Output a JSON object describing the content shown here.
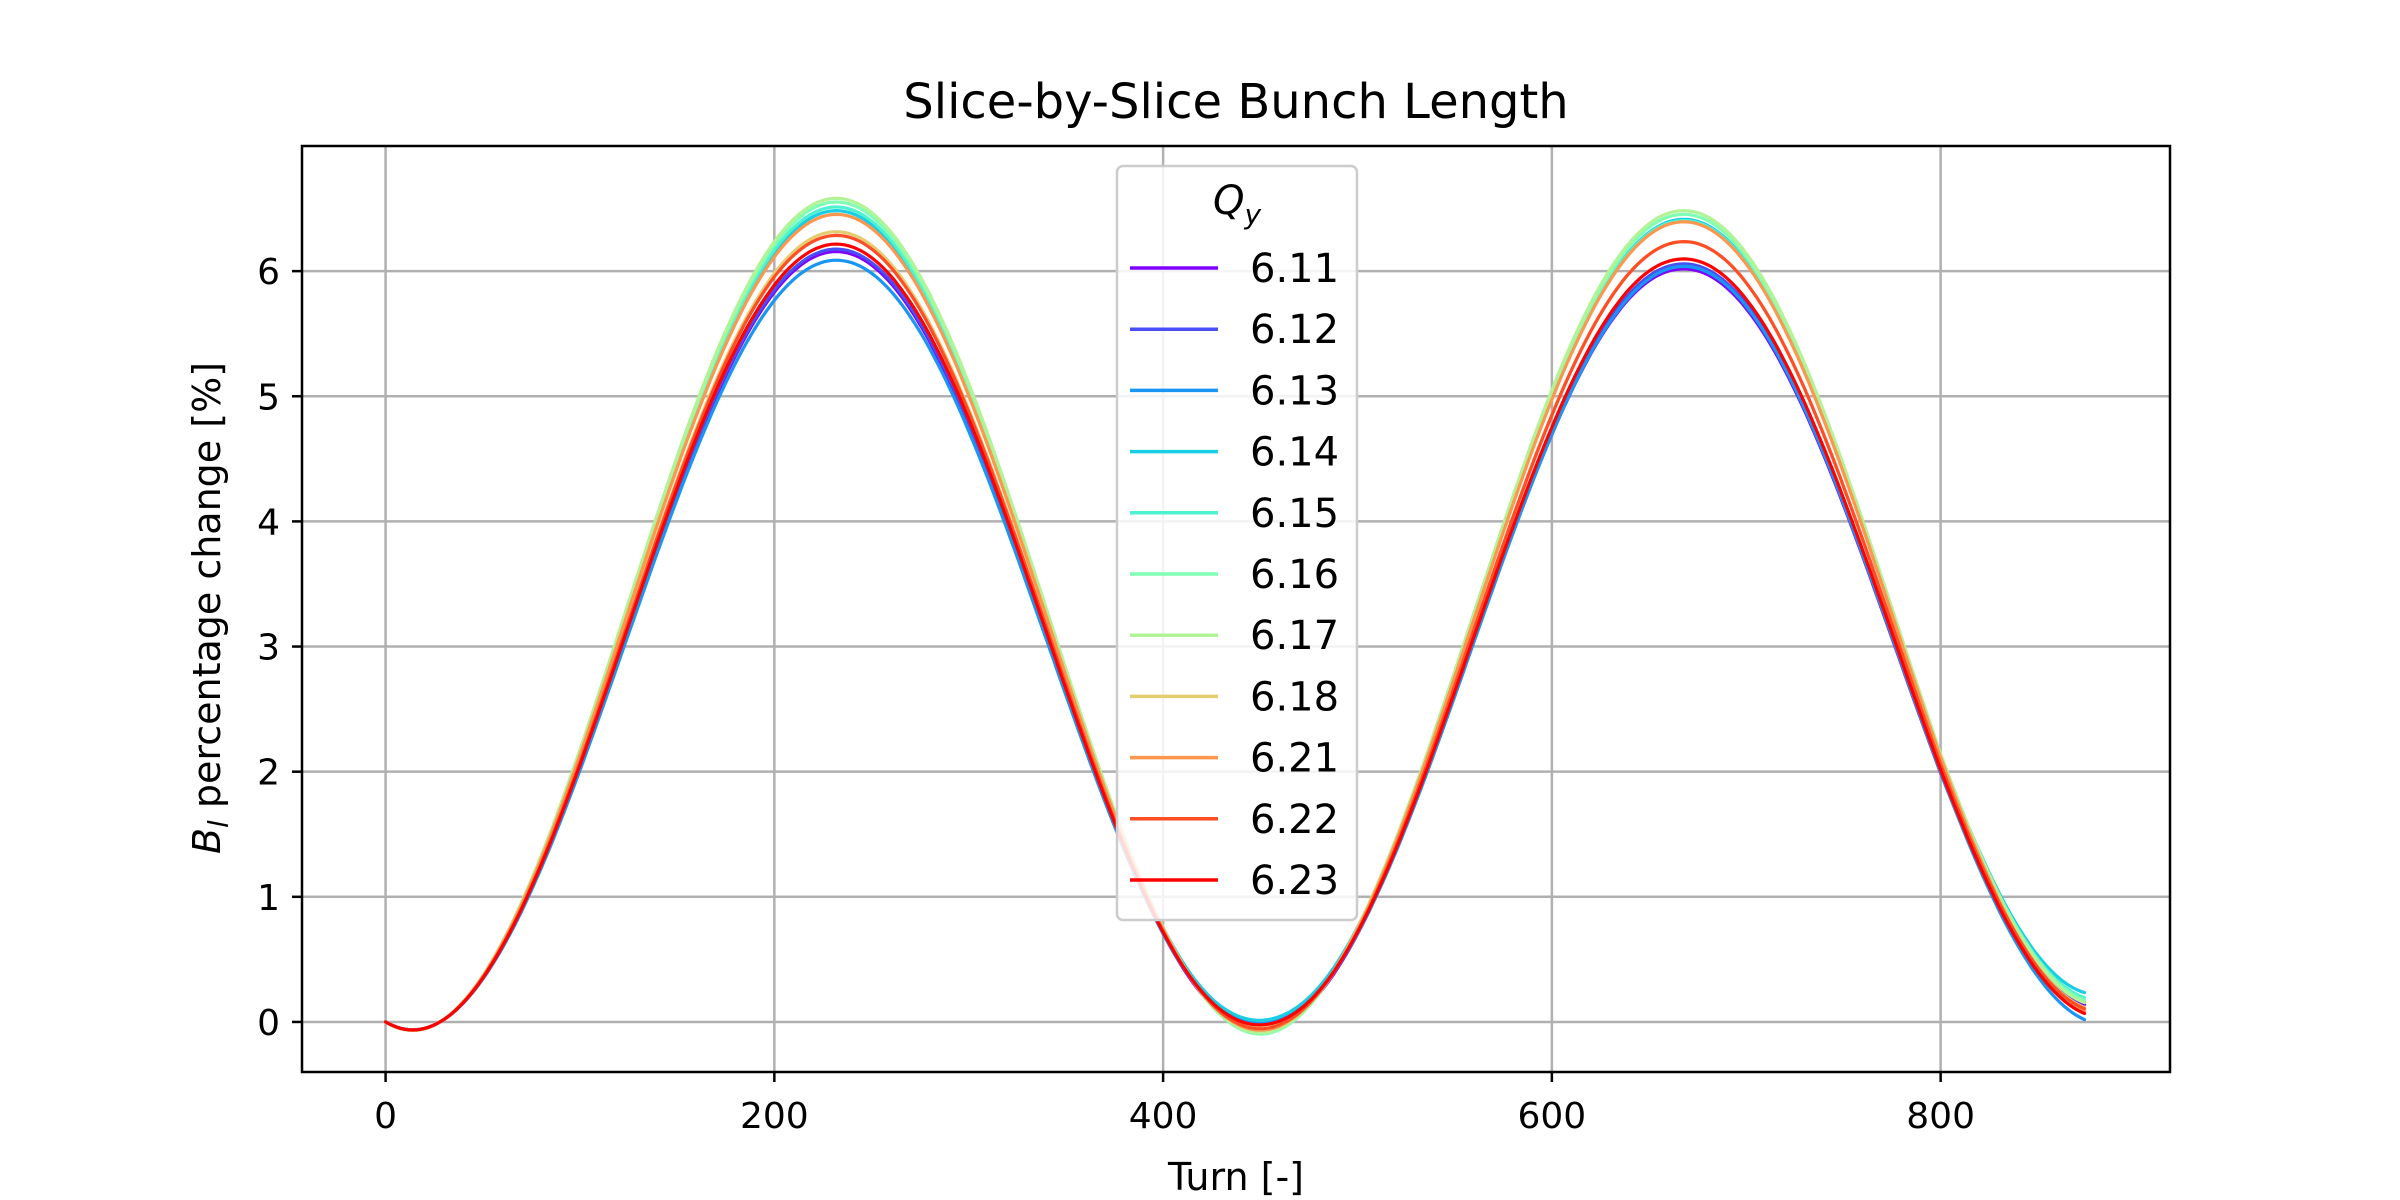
{
  "chart_data": {
    "type": "line",
    "title": "Slice-by-Slice Bunch Length",
    "xlabel": "Turn [-]",
    "ylabel_symbol": "B",
    "ylabel_subscript": "l",
    "ylabel_rest": " percentage change [%]",
    "xlim": [
      -43,
      918
    ],
    "ylim": [
      -0.4,
      7.0
    ],
    "xticks": [
      0,
      200,
      400,
      600,
      800
    ],
    "yticks": [
      0,
      1,
      2,
      3,
      4,
      5,
      6
    ],
    "grid": true,
    "legend": {
      "title_symbol": "Q",
      "title_subscript": "y",
      "placement": "upper-center"
    },
    "x_max": 874,
    "series": [
      {
        "name": "6.11",
        "color": "#8000ff",
        "peak1": 6.22,
        "peak2": 6.08,
        "trough": 0.0,
        "end": 0.2
      },
      {
        "name": "6.12",
        "color": "#4a4ef6",
        "peak1": 6.24,
        "peak2": 6.12,
        "trough": 0.02,
        "end": 0.22
      },
      {
        "name": "6.13",
        "color": "#1996f3",
        "peak1": 6.15,
        "peak2": 6.1,
        "trough": 0.05,
        "end": 0.08
      },
      {
        "name": "6.14",
        "color": "#18cde4",
        "peak1": 6.55,
        "peak2": 6.48,
        "trough": 0.08,
        "end": 0.3
      },
      {
        "name": "6.15",
        "color": "#4df3ce",
        "peak1": 6.58,
        "peak2": 6.47,
        "trough": 0.0,
        "end": 0.26
      },
      {
        "name": "6.16",
        "color": "#80ffb4",
        "peak1": 6.62,
        "peak2": 6.52,
        "trough": -0.03,
        "end": 0.24
      },
      {
        "name": "6.17",
        "color": "#b2f396",
        "peak1": 6.65,
        "peak2": 6.55,
        "trough": -0.02,
        "end": 0.22
      },
      {
        "name": "6.18",
        "color": "#e4cd70",
        "peak1": 6.38,
        "peak2": 6.3,
        "trough": 0.03,
        "end": 0.18
      },
      {
        "name": "6.21",
        "color": "#ff964e",
        "peak1": 6.52,
        "peak2": 6.46,
        "trough": 0.0,
        "end": 0.15
      },
      {
        "name": "6.22",
        "color": "#ff4e27",
        "peak1": 6.35,
        "peak2": 6.3,
        "trough": 0.01,
        "end": 0.17
      },
      {
        "name": "6.23",
        "color": "#ff0000",
        "peak1": 6.28,
        "peak2": 6.16,
        "trough": 0.04,
        "end": 0.13
      }
    ]
  }
}
